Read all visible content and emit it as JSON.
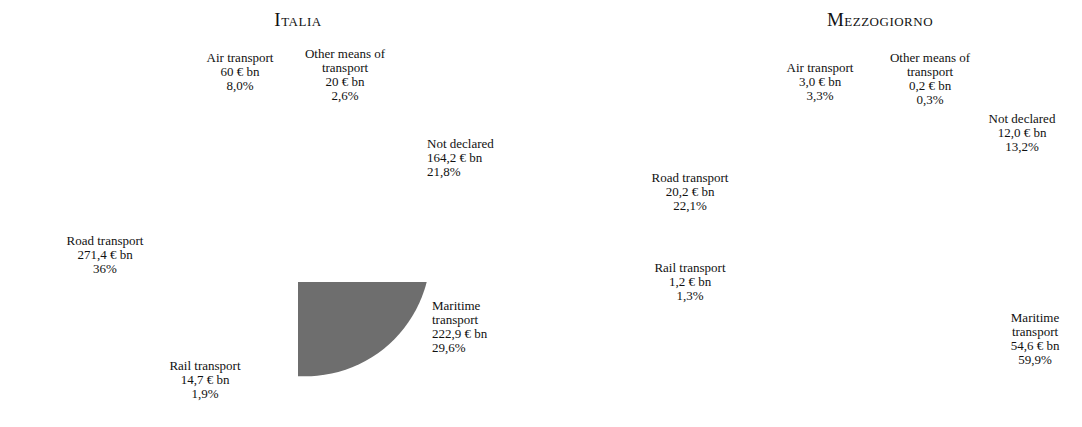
{
  "chart_data": [
    {
      "type": "pie",
      "title": "Italia",
      "categories": [
        "Other means of transport",
        "Not declared",
        "Maritime transport",
        "Rail transport",
        "Road transport",
        "Air transport"
      ],
      "values": [
        20,
        164.2,
        222.9,
        14.7,
        271.4,
        60
      ],
      "value_labels": [
        "20 € bn",
        "164,2 € bn",
        "222,9 € bn",
        "14,7 € bn",
        "271,4 € bn",
        "60 € bn"
      ],
      "percents": [
        2.6,
        21.8,
        29.6,
        1.9,
        36,
        8.0
      ],
      "percent_labels": [
        "2,6%",
        "21,8%",
        "29,6%",
        "1,9%",
        "36%",
        "8,0%"
      ],
      "colors": [
        "#404040",
        "#a6a6a6",
        "#6e6e6e",
        "#3c3c3c",
        "#8c8c8c",
        "#c8c8c8"
      ],
      "data_labels": true
    },
    {
      "type": "pie",
      "title": "Mezzogiorno",
      "categories": [
        "Other means of transport",
        "Not declared",
        "Maritime transport",
        "Rail transport",
        "Road transport",
        "Air transport"
      ],
      "values": [
        0.2,
        12.0,
        54.6,
        1.2,
        20.2,
        3.0
      ],
      "value_labels": [
        "0,2 € bn",
        "12,0 € bn",
        "54,6 € bn",
        "1,2 € bn",
        "20,2 € bn",
        "3,0 € bn"
      ],
      "percents": [
        0.3,
        13.2,
        59.9,
        1.3,
        22.1,
        3.3
      ],
      "percent_labels": [
        "0,3%",
        "13,2%",
        "59,9%",
        "1,3%",
        "22,1%",
        "3,3%"
      ],
      "colors": [
        "#404040",
        "#a6a6a6",
        "#6e6e6e",
        "#3c3c3c",
        "#8c8c8c",
        "#c8c8c8"
      ],
      "data_labels": true
    }
  ]
}
